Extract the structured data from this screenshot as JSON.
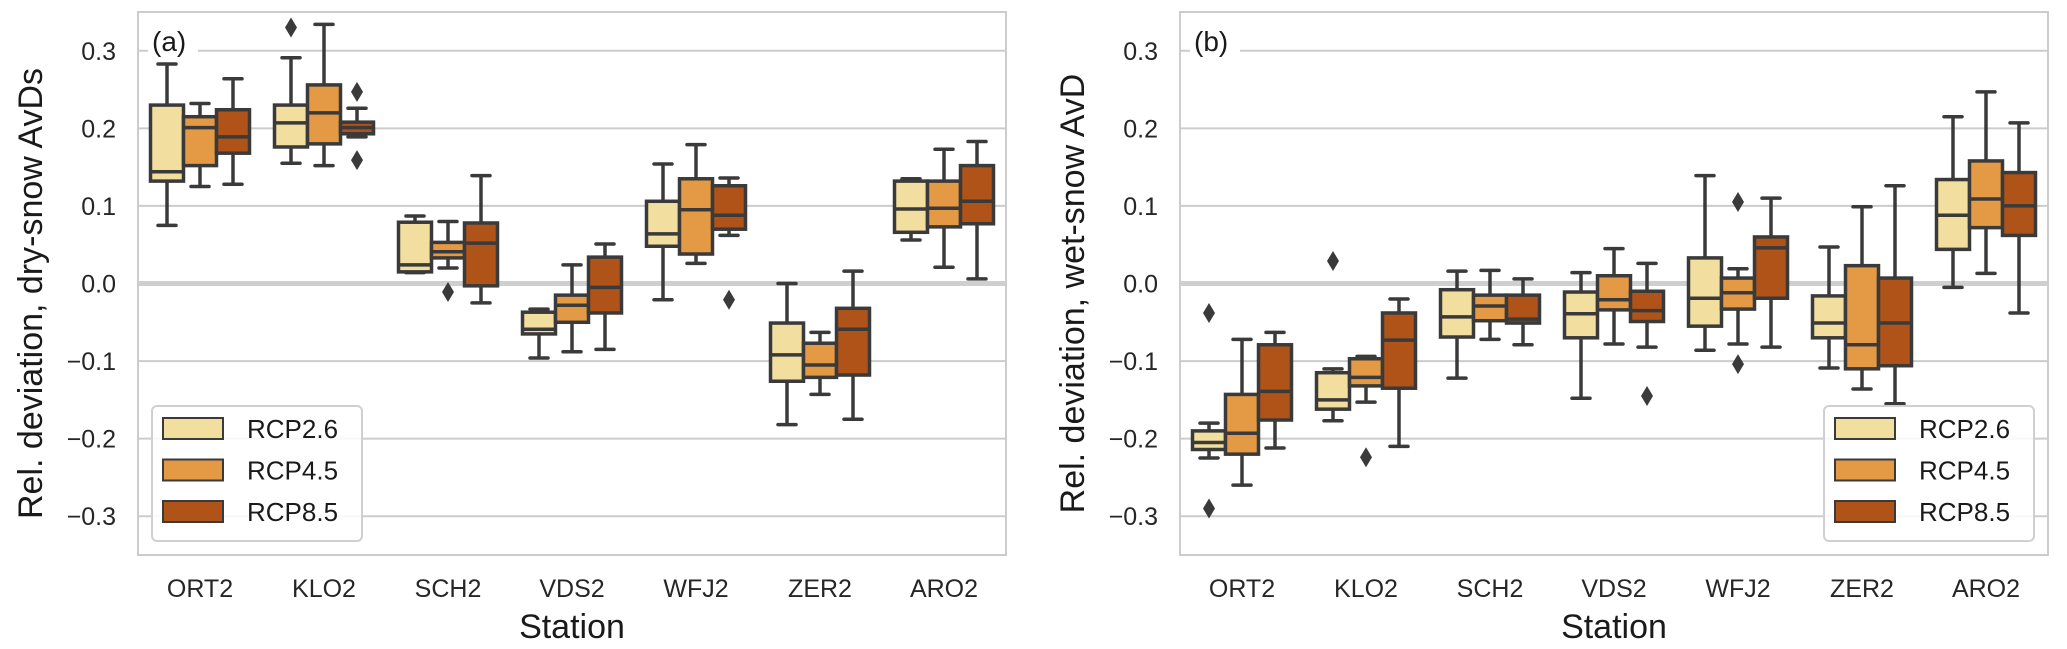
{
  "chart_data": [
    {
      "type": "boxplot",
      "panel_tag": "(a)",
      "xlabel": "Station",
      "ylabel": "Rel. deviation, dry-snow AvDs",
      "ylim": [
        -0.35,
        0.35
      ],
      "yticks": [
        -0.3,
        -0.2,
        -0.1,
        0.0,
        0.1,
        0.2,
        0.3
      ],
      "ytick_labels": [
        "−0.3",
        "−0.2",
        "−0.1",
        "0.0",
        "0.1",
        "0.2",
        "0.3"
      ],
      "grid": true,
      "legend_position": "bottom-left",
      "categories": [
        "ORT2",
        "KLO2",
        "SCH2",
        "VDS2",
        "WFJ2",
        "ZER2",
        "ARO2"
      ],
      "series": [
        {
          "name": "RCP2.6",
          "color": "#F2DE9E",
          "boxes": [
            {
              "whislo": 0.075,
              "q1": 0.132,
              "med": 0.144,
              "q3": 0.23,
              "whishi": 0.283,
              "fliers": []
            },
            {
              "whislo": 0.155,
              "q1": 0.176,
              "med": 0.207,
              "q3": 0.23,
              "whishi": 0.291,
              "fliers": [
                0.33
              ]
            },
            {
              "whislo": 0.014,
              "q1": 0.015,
              "med": 0.024,
              "q3": 0.079,
              "whishi": 0.087,
              "fliers": []
            },
            {
              "whislo": -0.096,
              "q1": -0.065,
              "med": -0.059,
              "q3": -0.037,
              "whishi": -0.033,
              "fliers": []
            },
            {
              "whislo": -0.021,
              "q1": 0.048,
              "med": 0.064,
              "q3": 0.106,
              "whishi": 0.154,
              "fliers": []
            },
            {
              "whislo": -0.182,
              "q1": -0.126,
              "med": -0.092,
              "q3": -0.051,
              "whishi": 0.0,
              "fliers": []
            },
            {
              "whislo": 0.056,
              "q1": 0.066,
              "med": 0.096,
              "q3": 0.132,
              "whishi": 0.135,
              "fliers": []
            }
          ]
        },
        {
          "name": "RCP4.5",
          "color": "#E49A45",
          "boxes": [
            {
              "whislo": 0.125,
              "q1": 0.152,
              "med": 0.201,
              "q3": 0.215,
              "whishi": 0.232,
              "fliers": []
            },
            {
              "whislo": 0.152,
              "q1": 0.18,
              "med": 0.22,
              "q3": 0.256,
              "whishi": 0.334,
              "fliers": []
            },
            {
              "whislo": 0.02,
              "q1": 0.033,
              "med": 0.041,
              "q3": 0.053,
              "whishi": 0.08,
              "fliers": [
                -0.011
              ]
            },
            {
              "whislo": -0.088,
              "q1": -0.05,
              "med": -0.028,
              "q3": -0.015,
              "whishi": 0.024,
              "fliers": []
            },
            {
              "whislo": 0.026,
              "q1": 0.038,
              "med": 0.095,
              "q3": 0.135,
              "whishi": 0.179,
              "fliers": []
            },
            {
              "whislo": -0.143,
              "q1": -0.121,
              "med": -0.105,
              "q3": -0.077,
              "whishi": -0.063,
              "fliers": []
            },
            {
              "whislo": 0.021,
              "q1": 0.073,
              "med": 0.097,
              "q3": 0.132,
              "whishi": 0.173,
              "fliers": []
            }
          ]
        },
        {
          "name": "RCP8.5",
          "color": "#B05318",
          "boxes": [
            {
              "whislo": 0.128,
              "q1": 0.168,
              "med": 0.189,
              "q3": 0.224,
              "whishi": 0.264,
              "fliers": []
            },
            {
              "whislo": 0.189,
              "q1": 0.193,
              "med": 0.201,
              "q3": 0.208,
              "whishi": 0.226,
              "fliers": [
                0.247,
                0.159
              ]
            },
            {
              "whislo": -0.025,
              "q1": -0.003,
              "med": 0.052,
              "q3": 0.078,
              "whishi": 0.139,
              "fliers": []
            },
            {
              "whislo": -0.085,
              "q1": -0.038,
              "med": -0.005,
              "q3": 0.034,
              "whishi": 0.051,
              "fliers": []
            },
            {
              "whislo": 0.062,
              "q1": 0.07,
              "med": 0.088,
              "q3": 0.126,
              "whishi": 0.136,
              "fliers": [
                -0.021
              ]
            },
            {
              "whislo": -0.175,
              "q1": -0.118,
              "med": -0.059,
              "q3": -0.032,
              "whishi": 0.016,
              "fliers": []
            },
            {
              "whislo": 0.006,
              "q1": 0.077,
              "med": 0.106,
              "q3": 0.152,
              "whishi": 0.183,
              "fliers": []
            }
          ]
        }
      ]
    },
    {
      "type": "boxplot",
      "panel_tag": "(b)",
      "xlabel": "Station",
      "ylabel": "Rel. deviation, wet-snow AvD",
      "ylim": [
        -0.35,
        0.35
      ],
      "yticks": [
        -0.3,
        -0.2,
        -0.1,
        0.0,
        0.1,
        0.2,
        0.3
      ],
      "ytick_labels": [
        "−0.3",
        "−0.2",
        "−0.1",
        "0.0",
        "0.1",
        "0.2",
        "0.3"
      ],
      "grid": true,
      "legend_position": "bottom-right",
      "categories": [
        "ORT2",
        "KLO2",
        "SCH2",
        "VDS2",
        "WFJ2",
        "ZER2",
        "ARO2"
      ],
      "series": [
        {
          "name": "RCP2.6",
          "color": "#F2DE9E",
          "boxes": [
            {
              "whislo": -0.225,
              "q1": -0.214,
              "med": -0.205,
              "q3": -0.19,
              "whishi": -0.18,
              "fliers": [
                -0.038,
                -0.29
              ]
            },
            {
              "whislo": -0.177,
              "q1": -0.162,
              "med": -0.15,
              "q3": -0.115,
              "whishi": -0.11,
              "fliers": [
                0.029
              ]
            },
            {
              "whislo": -0.122,
              "q1": -0.069,
              "med": -0.043,
              "q3": -0.008,
              "whishi": 0.016,
              "fliers": []
            },
            {
              "whislo": -0.148,
              "q1": -0.07,
              "med": -0.039,
              "q3": -0.011,
              "whishi": 0.014,
              "fliers": []
            },
            {
              "whislo": -0.086,
              "q1": -0.055,
              "med": -0.019,
              "q3": 0.033,
              "whishi": 0.139,
              "fliers": []
            },
            {
              "whislo": -0.109,
              "q1": -0.07,
              "med": -0.051,
              "q3": -0.016,
              "whishi": 0.047,
              "fliers": []
            },
            {
              "whislo": -0.005,
              "q1": 0.044,
              "med": 0.088,
              "q3": 0.134,
              "whishi": 0.215,
              "fliers": []
            }
          ]
        },
        {
          "name": "RCP4.5",
          "color": "#E49A45",
          "boxes": [
            {
              "whislo": -0.26,
              "q1": -0.22,
              "med": -0.193,
              "q3": -0.143,
              "whishi": -0.072,
              "fliers": []
            },
            {
              "whislo": -0.153,
              "q1": -0.132,
              "med": -0.121,
              "q3": -0.097,
              "whishi": -0.094,
              "fliers": [
                -0.224
              ]
            },
            {
              "whislo": -0.072,
              "q1": -0.048,
              "med": -0.029,
              "q3": -0.015,
              "whishi": 0.017,
              "fliers": []
            },
            {
              "whislo": -0.078,
              "q1": -0.034,
              "med": -0.021,
              "q3": 0.01,
              "whishi": 0.045,
              "fliers": []
            },
            {
              "whislo": -0.078,
              "q1": -0.033,
              "med": -0.012,
              "q3": 0.007,
              "whishi": 0.019,
              "fliers": [
                0.105,
                -0.104
              ]
            },
            {
              "whislo": -0.136,
              "q1": -0.11,
              "med": -0.079,
              "q3": 0.023,
              "whishi": 0.099,
              "fliers": []
            },
            {
              "whislo": 0.013,
              "q1": 0.072,
              "med": 0.109,
              "q3": 0.158,
              "whishi": 0.247,
              "fliers": []
            }
          ]
        },
        {
          "name": "RCP8.5",
          "color": "#B05318",
          "boxes": [
            {
              "whislo": -0.212,
              "q1": -0.176,
              "med": -0.139,
              "q3": -0.079,
              "whishi": -0.063,
              "fliers": []
            },
            {
              "whislo": -0.21,
              "q1": -0.135,
              "med": -0.073,
              "q3": -0.038,
              "whishi": -0.02,
              "fliers": []
            },
            {
              "whislo": -0.079,
              "q1": -0.051,
              "med": -0.046,
              "q3": -0.015,
              "whishi": 0.006,
              "fliers": []
            },
            {
              "whislo": -0.082,
              "q1": -0.049,
              "med": -0.035,
              "q3": -0.01,
              "whishi": 0.026,
              "fliers": [
                -0.145
              ]
            },
            {
              "whislo": -0.082,
              "q1": -0.019,
              "med": 0.046,
              "q3": 0.06,
              "whishi": 0.11,
              "fliers": []
            },
            {
              "whislo": -0.155,
              "q1": -0.106,
              "med": -0.051,
              "q3": 0.007,
              "whishi": 0.126,
              "fliers": []
            },
            {
              "whislo": -0.038,
              "q1": 0.062,
              "med": 0.1,
              "q3": 0.143,
              "whishi": 0.207,
              "fliers": []
            }
          ]
        }
      ]
    }
  ]
}
